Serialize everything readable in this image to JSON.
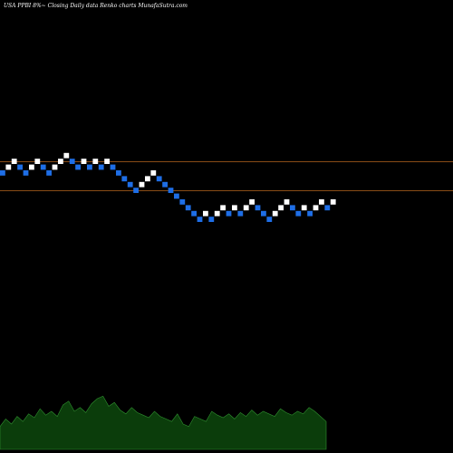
{
  "chart_data": {
    "type": "renko",
    "title": "USA PPBI 8%~  Closing Daily data  Renko  charts MunafaSutra.com",
    "colors": {
      "background": "#000000",
      "up_brick": "#ffffff",
      "down_brick": "#1e6ee6",
      "reference_line": "#b5651d",
      "volume_fill": "#0b3d0b",
      "volume_line": "#2f8f2f"
    },
    "price_range": [
      0,
      36
    ],
    "reference_lines": [
      7,
      2
    ],
    "bricks": [
      {
        "level": 5,
        "dir": "down"
      },
      {
        "level": 6,
        "dir": "up"
      },
      {
        "level": 7,
        "dir": "up"
      },
      {
        "level": 6,
        "dir": "down"
      },
      {
        "level": 5,
        "dir": "down"
      },
      {
        "level": 6,
        "dir": "up"
      },
      {
        "level": 7,
        "dir": "up"
      },
      {
        "level": 6,
        "dir": "down"
      },
      {
        "level": 5,
        "dir": "down"
      },
      {
        "level": 6,
        "dir": "up"
      },
      {
        "level": 7,
        "dir": "up"
      },
      {
        "level": 8,
        "dir": "up"
      },
      {
        "level": 7,
        "dir": "down"
      },
      {
        "level": 6,
        "dir": "down"
      },
      {
        "level": 7,
        "dir": "up"
      },
      {
        "level": 6,
        "dir": "down"
      },
      {
        "level": 7,
        "dir": "up"
      },
      {
        "level": 6,
        "dir": "down"
      },
      {
        "level": 7,
        "dir": "up"
      },
      {
        "level": 6,
        "dir": "down"
      },
      {
        "level": 5,
        "dir": "down"
      },
      {
        "level": 4,
        "dir": "down"
      },
      {
        "level": 3,
        "dir": "down"
      },
      {
        "level": 2,
        "dir": "down"
      },
      {
        "level": 3,
        "dir": "up"
      },
      {
        "level": 4,
        "dir": "up"
      },
      {
        "level": 5,
        "dir": "up"
      },
      {
        "level": 4,
        "dir": "down"
      },
      {
        "level": 3,
        "dir": "down"
      },
      {
        "level": 2,
        "dir": "down"
      },
      {
        "level": 1,
        "dir": "down"
      },
      {
        "level": 0,
        "dir": "down"
      },
      {
        "level": -1,
        "dir": "down"
      },
      {
        "level": -2,
        "dir": "down"
      },
      {
        "level": -3,
        "dir": "down"
      },
      {
        "level": -2,
        "dir": "up"
      },
      {
        "level": -3,
        "dir": "down"
      },
      {
        "level": -2,
        "dir": "up"
      },
      {
        "level": -1,
        "dir": "up"
      },
      {
        "level": -2,
        "dir": "down"
      },
      {
        "level": -1,
        "dir": "up"
      },
      {
        "level": -2,
        "dir": "down"
      },
      {
        "level": -1,
        "dir": "up"
      },
      {
        "level": 0,
        "dir": "up"
      },
      {
        "level": -1,
        "dir": "down"
      },
      {
        "level": -2,
        "dir": "down"
      },
      {
        "level": -3,
        "dir": "down"
      },
      {
        "level": -2,
        "dir": "up"
      },
      {
        "level": -1,
        "dir": "up"
      },
      {
        "level": 0,
        "dir": "up"
      },
      {
        "level": -1,
        "dir": "down"
      },
      {
        "level": -2,
        "dir": "down"
      },
      {
        "level": -1,
        "dir": "up"
      },
      {
        "level": -2,
        "dir": "down"
      },
      {
        "level": -1,
        "dir": "up"
      },
      {
        "level": 0,
        "dir": "up"
      },
      {
        "level": -1,
        "dir": "down"
      },
      {
        "level": 0,
        "dir": "up"
      }
    ],
    "volume": [
      18,
      24,
      20,
      26,
      22,
      28,
      25,
      32,
      27,
      30,
      26,
      35,
      38,
      30,
      33,
      29,
      36,
      40,
      42,
      34,
      37,
      31,
      28,
      33,
      29,
      27,
      25,
      30,
      26,
      24,
      22,
      28,
      20,
      18,
      26,
      24,
      22,
      30,
      27,
      25,
      28,
      24,
      29,
      26,
      31,
      27,
      30,
      28,
      26,
      32,
      29,
      27,
      30,
      28,
      33,
      30,
      26,
      22
    ]
  }
}
